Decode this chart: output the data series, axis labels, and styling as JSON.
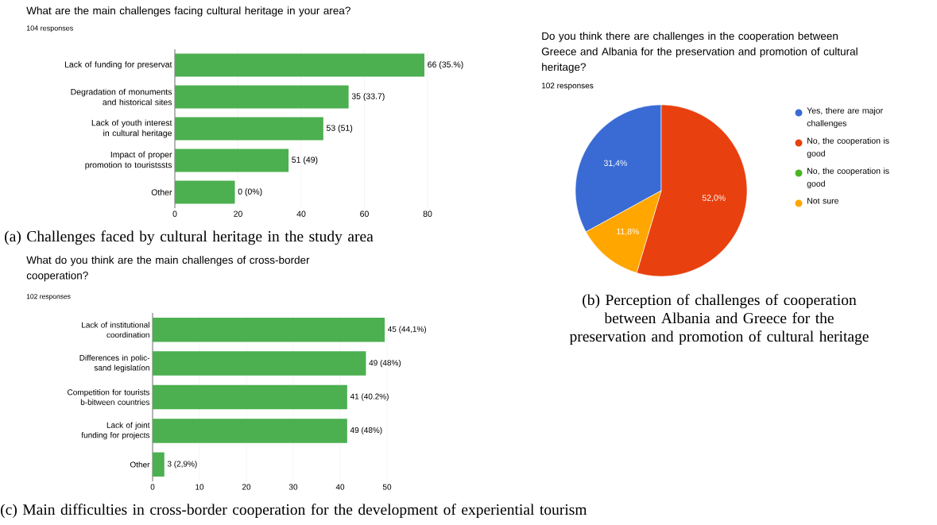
{
  "chart_data": [
    {
      "type": "bar",
      "orientation": "horizontal",
      "title": "What are the main challenges facing cultural heritage in your area?",
      "subtitle": "104 responses",
      "categories": [
        "Lack of funding for preservat",
        "Degradation of monuments and historical sites",
        "Lack of youth interest in cultural heritage",
        "Impact of proper promotion to touristssts",
        "Other"
      ],
      "values": [
        79,
        55,
        47,
        36,
        19
      ],
      "color": "#4caf50",
      "xlim": [
        0,
        80
      ],
      "xticks": [
        0,
        20,
        40,
        60,
        80
      ],
      "grid": "x",
      "annotations": [
        "(a) Challenges faced by cultural heritage in the study area",
        {
          "text": "66 (35.%)",
          "x": 79,
          "y": "Lack of funding for preservat"
        },
        {
          "text": "35 (33.7)",
          "x": 55,
          "y": "Degradation of monuments and historical sites"
        },
        {
          "text": "53 (51)",
          "x": 47,
          "y": "Lack of youth interest in cultural heritage"
        },
        {
          "text": "51 (49)",
          "x": 36,
          "y": "Impact of proper promotion to touristssts"
        },
        {
          "text": "0 (0%)",
          "x": 19,
          "y": "Other"
        }
      ]
    },
    {
      "type": "pie",
      "title": "Do you think there are challenges in the cooperation between Greece and Albania for the preservation and promotion of cultural heritage?",
      "subtitle": "102 responses",
      "categories": [
        "Yes, there are major challenges",
        "No, the cooperation is good",
        "No, the cooperation is good",
        "Not sure"
      ],
      "values": [
        31.4,
        52.0,
        0,
        11.8
      ],
      "value_labels": [
        "31,4%",
        "52,0%",
        null,
        "11,8%"
      ],
      "colors": [
        "#3a6bd4",
        "#e8400e",
        "#4bb424",
        "#ffa600"
      ],
      "legend": "right",
      "annotations": [
        "(b) Perception of challenges of cooperation between Albania and Greece for the preservation and promotion of cultural heritage"
      ]
    },
    {
      "type": "bar",
      "orientation": "horizontal",
      "title": "What do you think are the main challenges of cross-border cooperation?",
      "subtitle": "102 responses",
      "categories": [
        "Lack of institutional coordination",
        "Differences in polic-sand legislatíon",
        "Competition for tourists b-bitween countries",
        "Lack of joint funding for projects",
        "Other"
      ],
      "values": [
        49.5,
        45.5,
        41.5,
        41.5,
        2.5
      ],
      "color": "#4caf50",
      "xlim": [
        0,
        50
      ],
      "xticks": [
        0,
        10,
        20,
        30,
        40,
        50
      ],
      "grid": "x",
      "annotations": [
        "(c) Main difficulties in cross-border cooperation for the development of experiential tourism",
        {
          "text": "45 (44,1%)",
          "x": 49.5,
          "y": "Lack of institutional coordination"
        },
        {
          "text": "49 (48%)",
          "x": 45.5,
          "y": "Differences in polic-sand legislatíon"
        },
        {
          "text": "41 (40.2%)",
          "x": 41.5,
          "y": "Competition for tourists b-bitween countries"
        },
        {
          "text": "49 (48%)",
          "x": 41.5,
          "y": "Lack of joint funding for projects"
        },
        {
          "text": "3 (2,9%)",
          "x": 2.5,
          "y": "Other"
        }
      ]
    }
  ]
}
